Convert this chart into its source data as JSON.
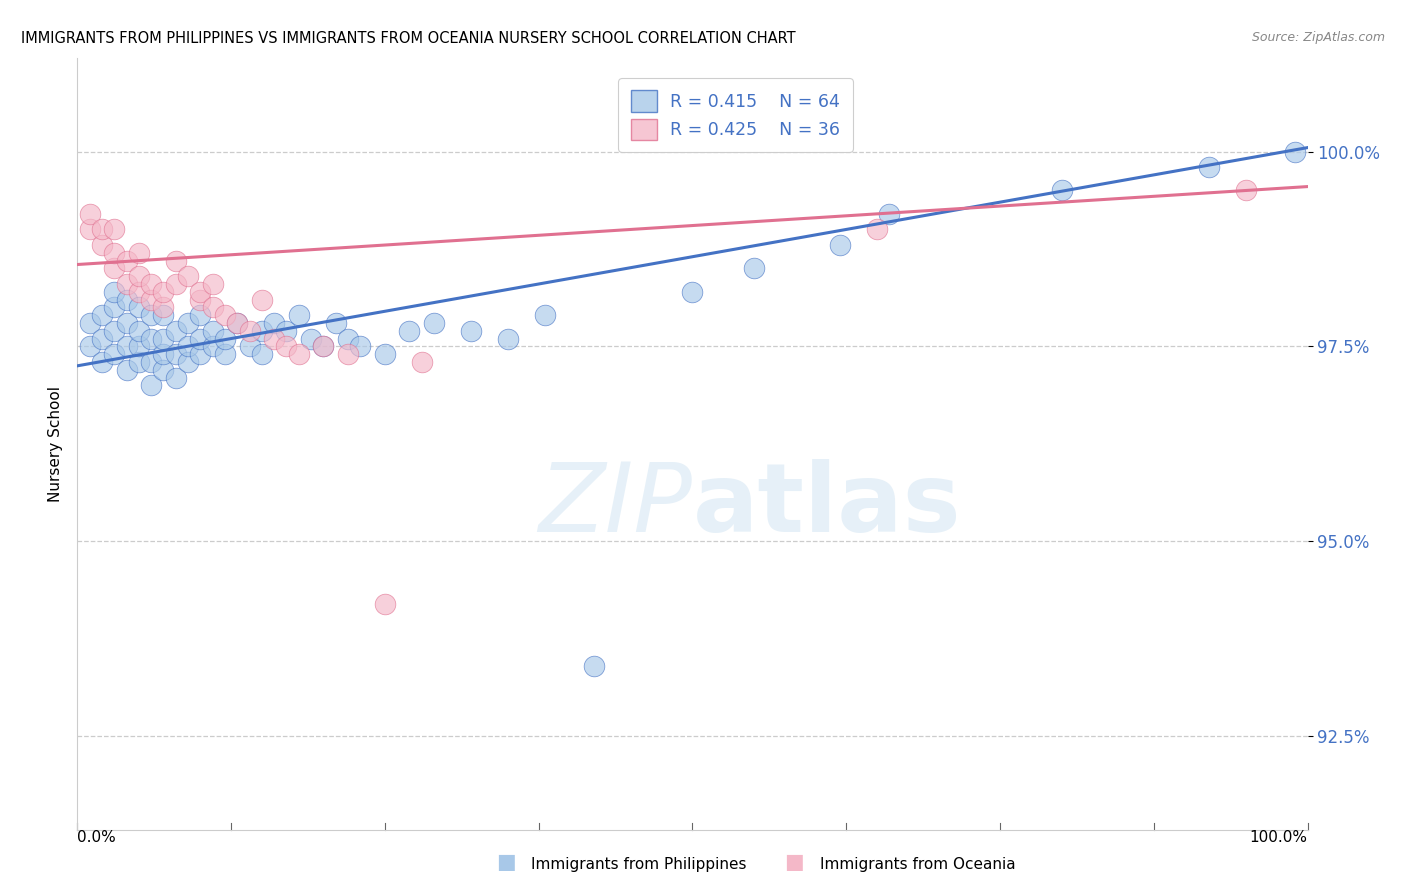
{
  "title": "IMMIGRANTS FROM PHILIPPINES VS IMMIGRANTS FROM OCEANIA NURSERY SCHOOL CORRELATION CHART",
  "source": "Source: ZipAtlas.com",
  "ylabel": "Nursery School",
  "xlim": [
    0,
    100
  ],
  "ylim": [
    91.3,
    101.2
  ],
  "yticks": [
    92.5,
    95.0,
    97.5,
    100.0
  ],
  "ytick_labels": [
    "92.5%",
    "95.0%",
    "97.5%",
    "100.0%"
  ],
  "blue_color": "#a8c8e8",
  "pink_color": "#f4b8c8",
  "trend_blue": "#4472c4",
  "trend_pink": "#e07090",
  "legend_label_blue": "R = 0.415    N = 64",
  "legend_label_pink": "R = 0.425    N = 36",
  "footer_blue": "Immigrants from Philippines",
  "footer_pink": "Immigrants from Oceania",
  "blue_scatter_x": [
    1,
    1,
    2,
    2,
    2,
    3,
    3,
    3,
    3,
    4,
    4,
    4,
    4,
    5,
    5,
    5,
    5,
    6,
    6,
    6,
    6,
    7,
    7,
    7,
    7,
    8,
    8,
    8,
    9,
    9,
    9,
    10,
    10,
    10,
    11,
    11,
    12,
    12,
    13,
    14,
    15,
    15,
    16,
    17,
    18,
    19,
    20,
    21,
    22,
    23,
    25,
    27,
    29,
    32,
    35,
    38,
    42,
    50,
    55,
    62,
    66,
    80,
    92,
    99
  ],
  "blue_scatter_y": [
    97.5,
    97.8,
    97.3,
    97.6,
    97.9,
    97.4,
    97.7,
    98.0,
    98.2,
    97.2,
    97.5,
    97.8,
    98.1,
    97.3,
    97.5,
    97.7,
    98.0,
    97.0,
    97.3,
    97.6,
    97.9,
    97.2,
    97.4,
    97.6,
    97.9,
    97.1,
    97.4,
    97.7,
    97.3,
    97.5,
    97.8,
    97.4,
    97.6,
    97.9,
    97.5,
    97.7,
    97.4,
    97.6,
    97.8,
    97.5,
    97.4,
    97.7,
    97.8,
    97.7,
    97.9,
    97.6,
    97.5,
    97.8,
    97.6,
    97.5,
    97.4,
    97.7,
    97.8,
    97.7,
    97.6,
    97.9,
    93.4,
    98.2,
    98.5,
    98.8,
    99.2,
    99.5,
    99.8,
    100.0
  ],
  "pink_scatter_x": [
    1,
    1,
    2,
    2,
    3,
    3,
    3,
    4,
    4,
    5,
    5,
    5,
    6,
    6,
    7,
    7,
    8,
    8,
    9,
    10,
    10,
    11,
    11,
    12,
    13,
    14,
    15,
    16,
    17,
    18,
    20,
    22,
    25,
    28,
    65,
    95
  ],
  "pink_scatter_y": [
    99.0,
    99.2,
    98.8,
    99.0,
    98.5,
    98.7,
    99.0,
    98.3,
    98.6,
    98.2,
    98.4,
    98.7,
    98.1,
    98.3,
    98.0,
    98.2,
    98.3,
    98.6,
    98.4,
    98.1,
    98.2,
    98.3,
    98.0,
    97.9,
    97.8,
    97.7,
    98.1,
    97.6,
    97.5,
    97.4,
    97.5,
    97.4,
    94.2,
    97.3,
    99.0,
    99.5
  ],
  "blue_line_y_start": 97.25,
  "blue_line_y_end": 100.05,
  "pink_line_y_start": 98.55,
  "pink_line_y_end": 99.55
}
